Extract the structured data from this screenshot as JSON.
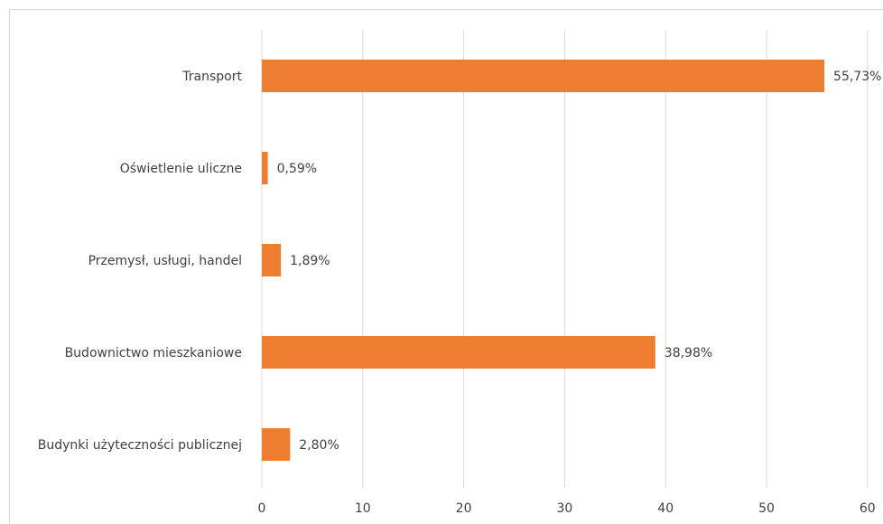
{
  "chart_data": {
    "type": "bar",
    "orientation": "horizontal",
    "categories": [
      "Transport",
      "Oświetlenie uliczne",
      "Przemysł, usługi, handel",
      "Budownictwo mieszkaniowe",
      "Budynki użyteczności publicznej"
    ],
    "values": [
      55.73,
      0.59,
      1.89,
      38.98,
      2.8
    ],
    "data_labels": [
      "55,73%",
      "0,59%",
      "1,89%",
      "38,98%",
      "2,80%"
    ],
    "x_ticks": [
      "0",
      "10",
      "20",
      "30",
      "40",
      "50",
      "60"
    ],
    "xlim": [
      0,
      60
    ],
    "grid": true,
    "legend": "none",
    "bar_color": "#ed7d31",
    "grid_color": "#d9d9d9",
    "text_color": "#404040"
  }
}
